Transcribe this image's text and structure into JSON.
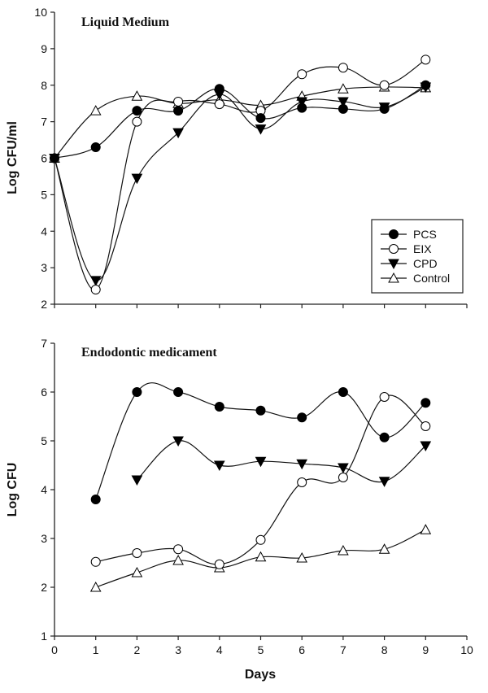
{
  "chart_data": [
    {
      "type": "line",
      "title": "Liquid Medium",
      "xlabel": "",
      "ylabel": "Log CFU/ml",
      "xlim": [
        0,
        10
      ],
      "ylim": [
        2,
        10
      ],
      "xticks": [
        "0",
        "1",
        "2",
        "3",
        "4",
        "5",
        "6",
        "7",
        "8",
        "9",
        "10"
      ],
      "yticks": [
        "2",
        "3",
        "4",
        "5",
        "6",
        "7",
        "8",
        "9",
        "10"
      ],
      "grid": false,
      "legend_position": "bottom-right",
      "legend": [
        "PCS",
        "EIX",
        "CPD",
        "Control"
      ],
      "series": [
        {
          "name": "PCS",
          "marker": "filled-circle",
          "x": [
            0,
            1,
            2,
            3,
            4,
            5,
            6,
            7,
            8,
            9
          ],
          "values": [
            6.0,
            6.3,
            7.3,
            7.3,
            7.9,
            7.1,
            7.38,
            7.35,
            7.35,
            8.0
          ]
        },
        {
          "name": "EIX",
          "marker": "open-circle",
          "x": [
            0,
            1,
            2,
            3,
            4,
            5,
            6,
            7,
            8,
            9
          ],
          "values": [
            6.0,
            2.4,
            7.0,
            7.55,
            7.48,
            7.3,
            8.3,
            8.48,
            8.0,
            8.7
          ]
        },
        {
          "name": "CPD",
          "marker": "filled-triangle-down",
          "x": [
            0,
            1,
            2,
            3,
            4,
            5,
            6,
            7,
            8,
            9
          ],
          "values": [
            6.0,
            2.65,
            5.45,
            6.7,
            7.75,
            6.8,
            7.55,
            7.55,
            7.4,
            7.95
          ]
        },
        {
          "name": "Control",
          "marker": "open-triangle-up",
          "x": [
            0,
            1,
            2,
            3,
            4,
            5,
            6,
            7,
            8,
            9
          ],
          "values": [
            6.0,
            7.3,
            7.7,
            7.5,
            7.6,
            7.45,
            7.7,
            7.9,
            7.95,
            7.93
          ]
        }
      ]
    },
    {
      "type": "line",
      "title": "Endodontic medicament",
      "xlabel": "Days",
      "ylabel": "Log CFU",
      "xlim": [
        0,
        10
      ],
      "ylim": [
        1,
        7
      ],
      "xticks": [
        "0",
        "1",
        "2",
        "3",
        "4",
        "5",
        "6",
        "7",
        "8",
        "9",
        "10"
      ],
      "yticks": [
        "1",
        "2",
        "3",
        "4",
        "5",
        "6",
        "7"
      ],
      "grid": false,
      "series": [
        {
          "name": "PCS",
          "marker": "filled-circle",
          "x": [
            1,
            2,
            3,
            4,
            5,
            6,
            7,
            8,
            9
          ],
          "values": [
            3.8,
            6.0,
            6.0,
            5.7,
            5.62,
            5.48,
            6.0,
            5.07,
            5.78
          ]
        },
        {
          "name": "EIX",
          "marker": "open-circle",
          "x": [
            1,
            2,
            3,
            4,
            5,
            6,
            7,
            8,
            9
          ],
          "values": [
            2.52,
            2.7,
            2.78,
            2.47,
            2.97,
            4.15,
            4.25,
            5.9,
            5.3
          ]
        },
        {
          "name": "CPD",
          "marker": "filled-triangle-down",
          "x": [
            2,
            3,
            4,
            5,
            6,
            7,
            8,
            9
          ],
          "values": [
            4.2,
            5.0,
            4.5,
            4.58,
            4.53,
            4.45,
            4.17,
            4.9
          ]
        },
        {
          "name": "Control",
          "marker": "open-triangle-up",
          "x": [
            1,
            2,
            3,
            4,
            5,
            6,
            7,
            8,
            9
          ],
          "values": [
            2.0,
            2.3,
            2.55,
            2.4,
            2.62,
            2.6,
            2.75,
            2.78,
            3.18
          ]
        }
      ]
    }
  ]
}
